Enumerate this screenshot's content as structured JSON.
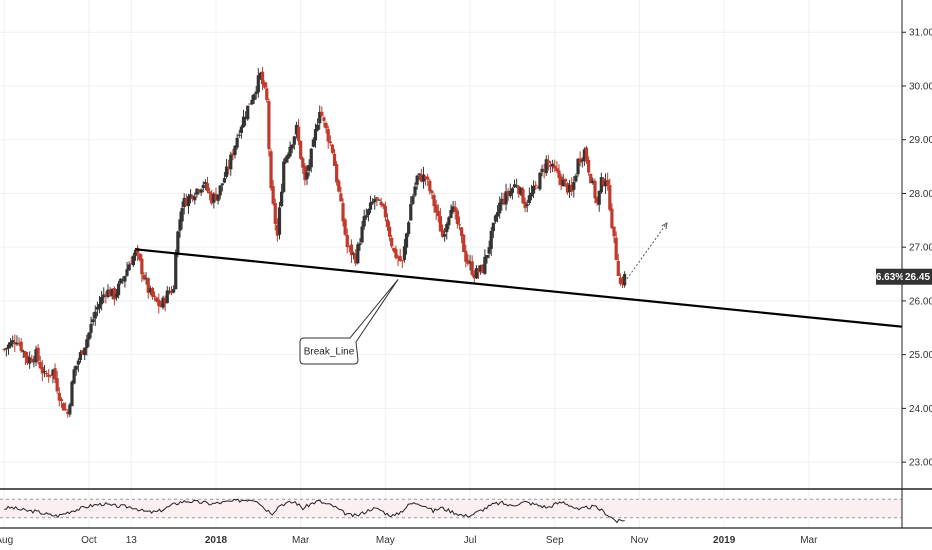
{
  "chart_data": {
    "type": "candlestick",
    "y_ticks": [
      "31.00",
      "30.00",
      "29.00",
      "28.00",
      "27.00",
      "26.00",
      "25.00",
      "24.00",
      "23.00"
    ],
    "y_tick_values": [
      31,
      30,
      29,
      28,
      27,
      26,
      25,
      24,
      23
    ],
    "ylim": [
      22.5,
      31.6
    ],
    "x_ticks": [
      "Aug",
      "Oct",
      "13",
      "2018",
      "Mar",
      "May",
      "Jul",
      "Sep",
      "Nov",
      "2019",
      "Mar"
    ],
    "x_tick_values": [
      0,
      2,
      3,
      5,
      7,
      9,
      11,
      13,
      15,
      17,
      19
    ],
    "xlim": [
      -0.1,
      21.2
    ],
    "last_price_label": "26.45",
    "last_change_label": "6.63%",
    "colors": {
      "up": "#333333",
      "down": "#c0392b",
      "trendline": "#000000",
      "badge": "#333333"
    },
    "keypoints": [
      [
        0.0,
        25.1
      ],
      [
        0.3,
        25.3
      ],
      [
        0.55,
        24.9
      ],
      [
        0.75,
        25.0
      ],
      [
        0.95,
        24.6
      ],
      [
        1.15,
        24.7
      ],
      [
        1.35,
        24.1
      ],
      [
        1.5,
        23.9
      ],
      [
        1.65,
        24.7
      ],
      [
        1.85,
        25.1
      ],
      [
        2.0,
        25.4
      ],
      [
        2.15,
        25.8
      ],
      [
        2.4,
        26.2
      ],
      [
        2.6,
        26.1
      ],
      [
        2.8,
        26.4
      ],
      [
        2.95,
        26.7
      ],
      [
        3.1,
        26.9
      ],
      [
        3.2,
        26.7
      ],
      [
        3.4,
        26.2
      ],
      [
        3.55,
        26.0
      ],
      [
        3.7,
        25.9
      ],
      [
        3.9,
        26.2
      ],
      [
        4.0,
        26.2
      ],
      [
        4.05,
        27.0
      ],
      [
        4.2,
        27.8
      ],
      [
        4.45,
        28.0
      ],
      [
        4.7,
        28.2
      ],
      [
        4.9,
        27.9
      ],
      [
        5.05,
        28.0
      ],
      [
        5.3,
        28.5
      ],
      [
        5.55,
        29.2
      ],
      [
        5.8,
        29.7
      ],
      [
        6.05,
        30.2
      ],
      [
        6.2,
        29.7
      ],
      [
        6.3,
        28.0
      ],
      [
        6.45,
        27.2
      ],
      [
        6.6,
        28.6
      ],
      [
        6.8,
        29.0
      ],
      [
        6.9,
        29.2
      ],
      [
        7.1,
        28.2
      ],
      [
        7.3,
        28.9
      ],
      [
        7.45,
        29.6
      ],
      [
        7.55,
        29.3
      ],
      [
        7.75,
        28.8
      ],
      [
        7.9,
        28.0
      ],
      [
        8.1,
        27.0
      ],
      [
        8.3,
        26.8
      ],
      [
        8.5,
        27.5
      ],
      [
        8.75,
        27.9
      ],
      [
        9.0,
        27.6
      ],
      [
        9.2,
        26.9
      ],
      [
        9.4,
        26.7
      ],
      [
        9.6,
        27.8
      ],
      [
        9.75,
        28.3
      ],
      [
        9.95,
        28.3
      ],
      [
        10.15,
        27.8
      ],
      [
        10.35,
        27.2
      ],
      [
        10.55,
        27.8
      ],
      [
        10.75,
        27.3
      ],
      [
        10.9,
        26.8
      ],
      [
        11.1,
        26.5
      ],
      [
        11.3,
        26.6
      ],
      [
        11.5,
        27.2
      ],
      [
        11.7,
        27.8
      ],
      [
        11.9,
        28.0
      ],
      [
        12.1,
        28.2
      ],
      [
        12.3,
        27.8
      ],
      [
        12.55,
        28.1
      ],
      [
        12.8,
        28.6
      ],
      [
        13.0,
        28.4
      ],
      [
        13.2,
        28.2
      ],
      [
        13.4,
        28.0
      ],
      [
        13.55,
        28.6
      ],
      [
        13.7,
        28.8
      ],
      [
        13.85,
        28.3
      ],
      [
        14.0,
        27.8
      ],
      [
        14.1,
        28.2
      ],
      [
        14.2,
        28.3
      ],
      [
        14.3,
        27.8
      ],
      [
        14.4,
        27.1
      ],
      [
        14.55,
        26.3
      ],
      [
        14.65,
        26.45
      ]
    ],
    "trendline": {
      "start": [
        3.1,
        26.96
      ],
      "end": [
        21.2,
        25.52
      ]
    },
    "projection_arrow": {
      "start": [
        14.65,
        26.35
      ],
      "end": [
        15.65,
        27.45
      ]
    },
    "annotation": {
      "text": "Break_Line",
      "anchor": [
        9.3,
        26.4
      ]
    },
    "rsi": [
      50,
      52,
      48,
      45,
      44,
      40,
      36,
      34,
      40,
      46,
      50,
      55,
      58,
      60,
      56,
      55,
      54,
      52,
      45,
      42,
      43,
      50,
      58,
      64,
      66,
      64,
      63,
      60,
      62,
      64,
      66,
      68,
      70,
      68,
      50,
      40,
      58,
      62,
      64,
      50,
      60,
      66,
      60,
      55,
      44,
      36,
      34,
      42,
      50,
      48,
      38,
      34,
      46,
      60,
      62,
      56,
      44,
      52,
      46,
      40,
      34,
      36,
      44,
      52,
      60,
      62,
      56,
      60,
      64,
      60,
      56,
      52,
      60,
      64,
      56,
      46,
      52,
      54,
      46,
      34,
      22,
      24
    ]
  }
}
